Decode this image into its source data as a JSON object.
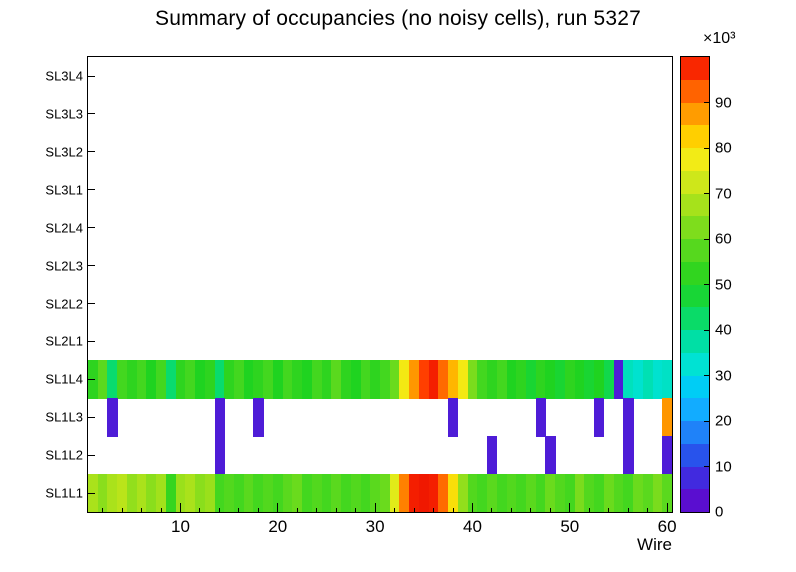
{
  "chart_data": {
    "type": "heatmap",
    "title": "Summary of occupancies (no noisy cells), run 5327",
    "xlabel": "Wire",
    "x_min": 0.5,
    "x_max": 60.5,
    "n_wires": 60,
    "x_ticks": [
      10,
      20,
      30,
      40,
      50,
      60
    ],
    "x_minor_tick_step": 2,
    "z_min": 0,
    "z_max": 100,
    "z_ticks": [
      0,
      10,
      20,
      30,
      40,
      50,
      60,
      70,
      80,
      90
    ],
    "z_exponent_label": "×10³",
    "rows_top_to_bottom": [
      "SL3L4",
      "SL3L3",
      "SL3L2",
      "SL3L1",
      "SL2L4",
      "SL2L3",
      "SL2L2",
      "SL2L1",
      "SL1L4",
      "SL1L3",
      "SL1L2",
      "SL1L1"
    ],
    "empty_rows": [
      "SL2L1",
      "SL2L2",
      "SL2L3",
      "SL2L4",
      "SL3L1",
      "SL3L2",
      "SL3L3",
      "SL3L4"
    ],
    "series": [
      {
        "name": "SL1L4",
        "values": [
          52,
          58,
          42,
          55,
          52,
          55,
          50,
          55,
          42,
          52,
          55,
          50,
          52,
          42,
          52,
          55,
          50,
          52,
          55,
          50,
          55,
          52,
          50,
          55,
          52,
          58,
          52,
          50,
          55,
          52,
          55,
          60,
          78,
          88,
          95,
          99,
          92,
          85,
          78,
          62,
          55,
          52,
          55,
          50,
          52,
          48,
          52,
          50,
          48,
          52,
          50,
          48,
          50,
          45,
          5,
          35,
          33,
          36,
          33,
          34
        ]
      },
      {
        "name": "SL1L3",
        "values": [
          0,
          0,
          5,
          0,
          0,
          0,
          0,
          0,
          0,
          0,
          0,
          0,
          0,
          5,
          0,
          0,
          0,
          5,
          0,
          0,
          0,
          0,
          0,
          0,
          0,
          0,
          0,
          0,
          0,
          0,
          0,
          0,
          0,
          0,
          0,
          0,
          0,
          5,
          0,
          0,
          0,
          0,
          0,
          0,
          0,
          0,
          5,
          0,
          0,
          0,
          0,
          0,
          5,
          0,
          0,
          5,
          0,
          0,
          0,
          88
        ]
      },
      {
        "name": "SL1L2",
        "values": [
          0,
          0,
          0,
          0,
          0,
          0,
          0,
          0,
          0,
          0,
          0,
          0,
          0,
          5,
          0,
          0,
          0,
          0,
          0,
          0,
          0,
          0,
          0,
          0,
          0,
          0,
          0,
          0,
          0,
          0,
          0,
          0,
          0,
          0,
          0,
          0,
          0,
          0,
          0,
          0,
          0,
          5,
          0,
          0,
          0,
          0,
          0,
          5,
          0,
          0,
          0,
          0,
          0,
          0,
          0,
          5,
          0,
          0,
          0,
          5
        ]
      },
      {
        "name": "SL1L1",
        "values": [
          68,
          64,
          68,
          70,
          65,
          68,
          64,
          67,
          53,
          66,
          68,
          64,
          66,
          55,
          57,
          55,
          58,
          55,
          57,
          55,
          58,
          60,
          55,
          57,
          55,
          58,
          55,
          57,
          55,
          58,
          60,
          75,
          90,
          99,
          100,
          99,
          92,
          80,
          65,
          57,
          55,
          58,
          55,
          57,
          55,
          58,
          55,
          60,
          57,
          55,
          62,
          57,
          55,
          60,
          57,
          55,
          60,
          58,
          62,
          58
        ]
      }
    ],
    "palette_stops": [
      [
        0.0,
        "#6600c8"
      ],
      [
        0.08,
        "#3f2de0"
      ],
      [
        0.14,
        "#2060f0"
      ],
      [
        0.2,
        "#1e9aff"
      ],
      [
        0.26,
        "#00c6ff"
      ],
      [
        0.32,
        "#00e2d8"
      ],
      [
        0.38,
        "#00dfa0"
      ],
      [
        0.44,
        "#0ed955"
      ],
      [
        0.5,
        "#1fd320"
      ],
      [
        0.57,
        "#52d81e"
      ],
      [
        0.64,
        "#8ade1c"
      ],
      [
        0.71,
        "#c2e51a"
      ],
      [
        0.77,
        "#f0ee18"
      ],
      [
        0.82,
        "#ffd400"
      ],
      [
        0.87,
        "#ffa200"
      ],
      [
        0.92,
        "#ff6a00"
      ],
      [
        0.96,
        "#ff3000"
      ],
      [
        1.0,
        "#f01800"
      ]
    ],
    "frame_color": "#000000",
    "background_color": "#ffffff"
  }
}
